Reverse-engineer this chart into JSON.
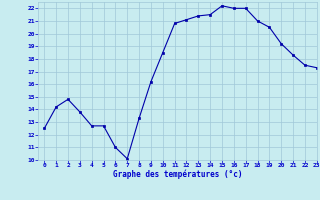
{
  "hours": [
    0,
    1,
    2,
    3,
    4,
    5,
    6,
    7,
    8,
    9,
    10,
    11,
    12,
    13,
    14,
    15,
    16,
    17,
    18,
    19,
    20,
    21,
    22,
    23
  ],
  "temperatures": [
    12.5,
    14.2,
    14.8,
    13.8,
    12.7,
    12.7,
    11.0,
    10.1,
    13.3,
    16.2,
    18.5,
    20.8,
    21.1,
    21.4,
    21.5,
    22.2,
    22.0,
    22.0,
    21.0,
    20.5,
    19.2,
    18.3,
    17.5,
    17.3
  ],
  "line_color": "#0000aa",
  "marker_color": "#0000aa",
  "bg_color": "#c8ecf0",
  "grid_color": "#a0c8d8",
  "axis_label_color": "#0000cc",
  "tick_label_color": "#0000cc",
  "xlabel": "Graphe des températures (°c)",
  "ylim": [
    10,
    22.5
  ],
  "xlim": [
    -0.5,
    23
  ],
  "yticks": [
    10,
    11,
    12,
    13,
    14,
    15,
    16,
    17,
    18,
    19,
    20,
    21,
    22
  ],
  "xticks": [
    0,
    1,
    2,
    3,
    4,
    5,
    6,
    7,
    8,
    9,
    10,
    11,
    12,
    13,
    14,
    15,
    16,
    17,
    18,
    19,
    20,
    21,
    22,
    23
  ]
}
